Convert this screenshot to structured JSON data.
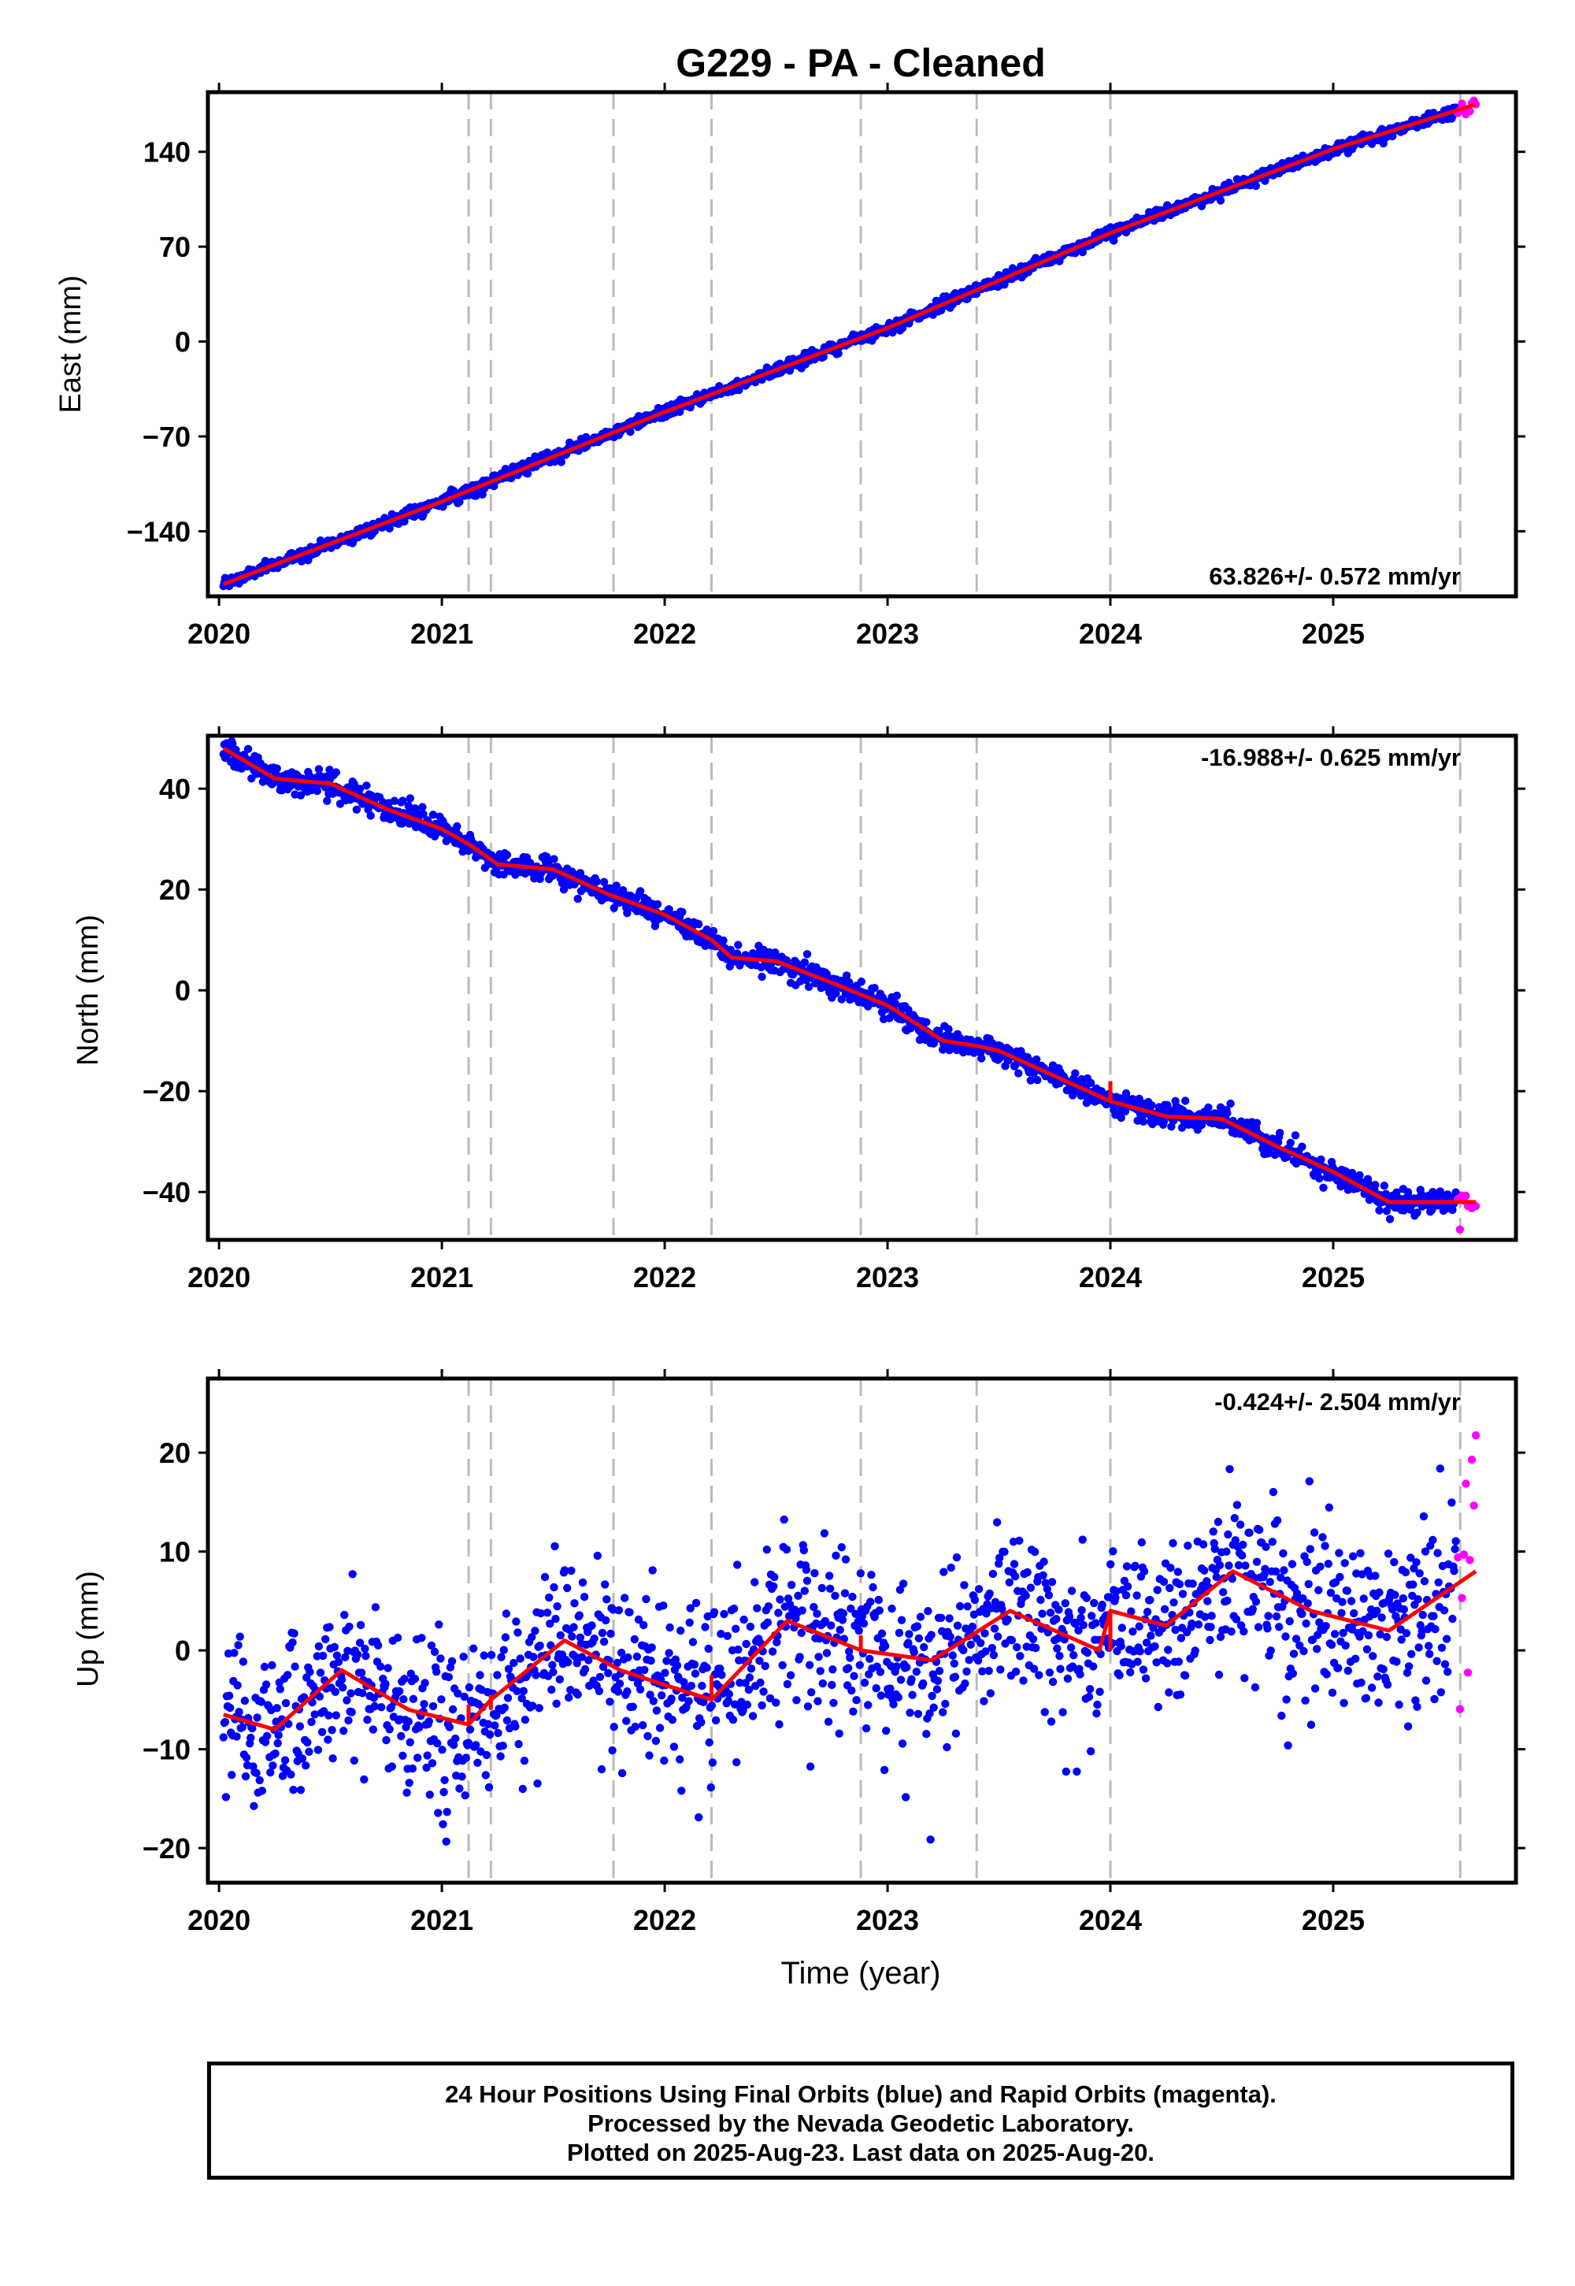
{
  "title": "G229  - PA - Cleaned",
  "xlabel": "Time (year)",
  "colors": {
    "final": "#0000ff",
    "rapid": "#ff00ff",
    "model": "#ff0000",
    "events": "#bbbbbb"
  },
  "footer": {
    "line1": "24 Hour Positions Using Final Orbits (blue) and Rapid Orbits (magenta).",
    "line2": "Processed by the Nevada Geodetic Laboratory.",
    "line3": "Plotted on 2025-Aug-23. Last data on 2025-Aug-20."
  },
  "chart_data": [
    {
      "type": "scatter",
      "component": "east",
      "ylabel": "East (mm)",
      "xlim": [
        2019.95,
        2025.82
      ],
      "ylim": [
        -188,
        184
      ],
      "xticks": [
        2020,
        2021,
        2022,
        2023,
        2024,
        2025
      ],
      "yticks": [
        -140,
        -70,
        0,
        70,
        140
      ],
      "rate_label": "63.826+/- 0.572 mm/yr",
      "rate": 63.826,
      "scatter_sd": 2.2,
      "model": {
        "x": [
          2020.02,
          2021.0,
          2022.0,
          2023.0,
          2024.0,
          2025.0,
          2025.64
        ],
        "y": [
          -179,
          -118,
          -52,
          10,
          80,
          142,
          175
        ]
      },
      "steps": [],
      "final_range": [
        2020.02,
        2025.55
      ],
      "rapid_range": [
        2025.56,
        2025.64
      ],
      "event_lines": [
        2021.12,
        2021.22,
        2021.77,
        2022.21,
        2022.88,
        2023.4,
        2024.0,
        2025.57
      ]
    },
    {
      "type": "scatter",
      "component": "north",
      "ylabel": "North (mm)",
      "xlim": [
        2019.95,
        2025.82
      ],
      "ylim": [
        -49.5,
        50.5
      ],
      "xticks": [
        2020,
        2021,
        2022,
        2023,
        2024,
        2025
      ],
      "yticks": [
        -40,
        -20,
        0,
        20,
        40
      ],
      "rate_label": "-16.988+/- 0.625 mm/yr",
      "rate": -16.988,
      "scatter_sd": 1.2,
      "model": {
        "x": [
          2020.02,
          2020.25,
          2020.5,
          2020.75,
          2021.0,
          2021.12,
          2021.25,
          2021.5,
          2021.75,
          2022.0,
          2022.21,
          2022.3,
          2022.5,
          2022.75,
          2023.0,
          2023.25,
          2023.4,
          2023.5,
          2023.75,
          2024.0,
          2024.25,
          2024.5,
          2024.75,
          2025.0,
          2025.25,
          2025.64
        ],
        "y": [
          48,
          42,
          41,
          36,
          32,
          29,
          25,
          24,
          19,
          15,
          10,
          6.5,
          5.8,
          1.5,
          -3,
          -10,
          -11,
          -12,
          -17,
          -22,
          -25,
          -25.5,
          -31,
          -36,
          -42,
          -42
        ]
      },
      "steps": [
        {
          "x": 2024.0,
          "y0": -22,
          "y1": -18
        }
      ],
      "final_range": [
        2020.02,
        2025.55
      ],
      "rapid_range": [
        2025.56,
        2025.64
      ],
      "event_lines": [
        2021.12,
        2021.22,
        2021.77,
        2022.21,
        2022.88,
        2023.4,
        2024.0,
        2025.57
      ]
    },
    {
      "type": "scatter",
      "component": "up",
      "ylabel": "Up (mm)",
      "xlim": [
        2019.95,
        2025.82
      ],
      "ylim": [
        -23.5,
        27.5
      ],
      "xticks": [
        2020,
        2021,
        2022,
        2023,
        2024,
        2025
      ],
      "yticks": [
        -20,
        -10,
        0,
        10,
        20
      ],
      "rate_label": "-0.424+/- 2.504 mm/yr",
      "rate": -0.424,
      "scatter_sd": 4.2,
      "model": {
        "x": [
          2020.02,
          2020.25,
          2020.55,
          2020.85,
          2021.12,
          2021.22,
          2021.55,
          2021.8,
          2022.0,
          2022.21,
          2022.55,
          2022.88,
          2023.2,
          2023.55,
          2023.95,
          2024.0,
          2024.25,
          2024.55,
          2024.9,
          2025.25,
          2025.64
        ],
        "y": [
          -6.5,
          -8,
          -2,
          -6,
          -7.5,
          -5,
          1,
          -2,
          -3.5,
          -5,
          3,
          0,
          -1,
          4,
          0,
          4,
          2.5,
          8,
          4,
          2,
          8
        ]
      },
      "steps": [
        {
          "x": 2021.12,
          "y0": -7.5,
          "y1": -5.5
        },
        {
          "x": 2021.22,
          "y0": -6,
          "y1": -4.5
        },
        {
          "x": 2022.21,
          "y0": -5,
          "y1": -2.5
        },
        {
          "x": 2022.88,
          "y0": 0,
          "y1": 1.5
        },
        {
          "x": 2024.0,
          "y0": 0,
          "y1": 4
        }
      ],
      "final_range": [
        2020.02,
        2025.55
      ],
      "rapid_range": [
        2025.56,
        2025.64
      ],
      "event_lines": [
        2021.12,
        2021.22,
        2021.77,
        2022.21,
        2022.88,
        2023.4,
        2024.0,
        2025.57
      ]
    }
  ]
}
